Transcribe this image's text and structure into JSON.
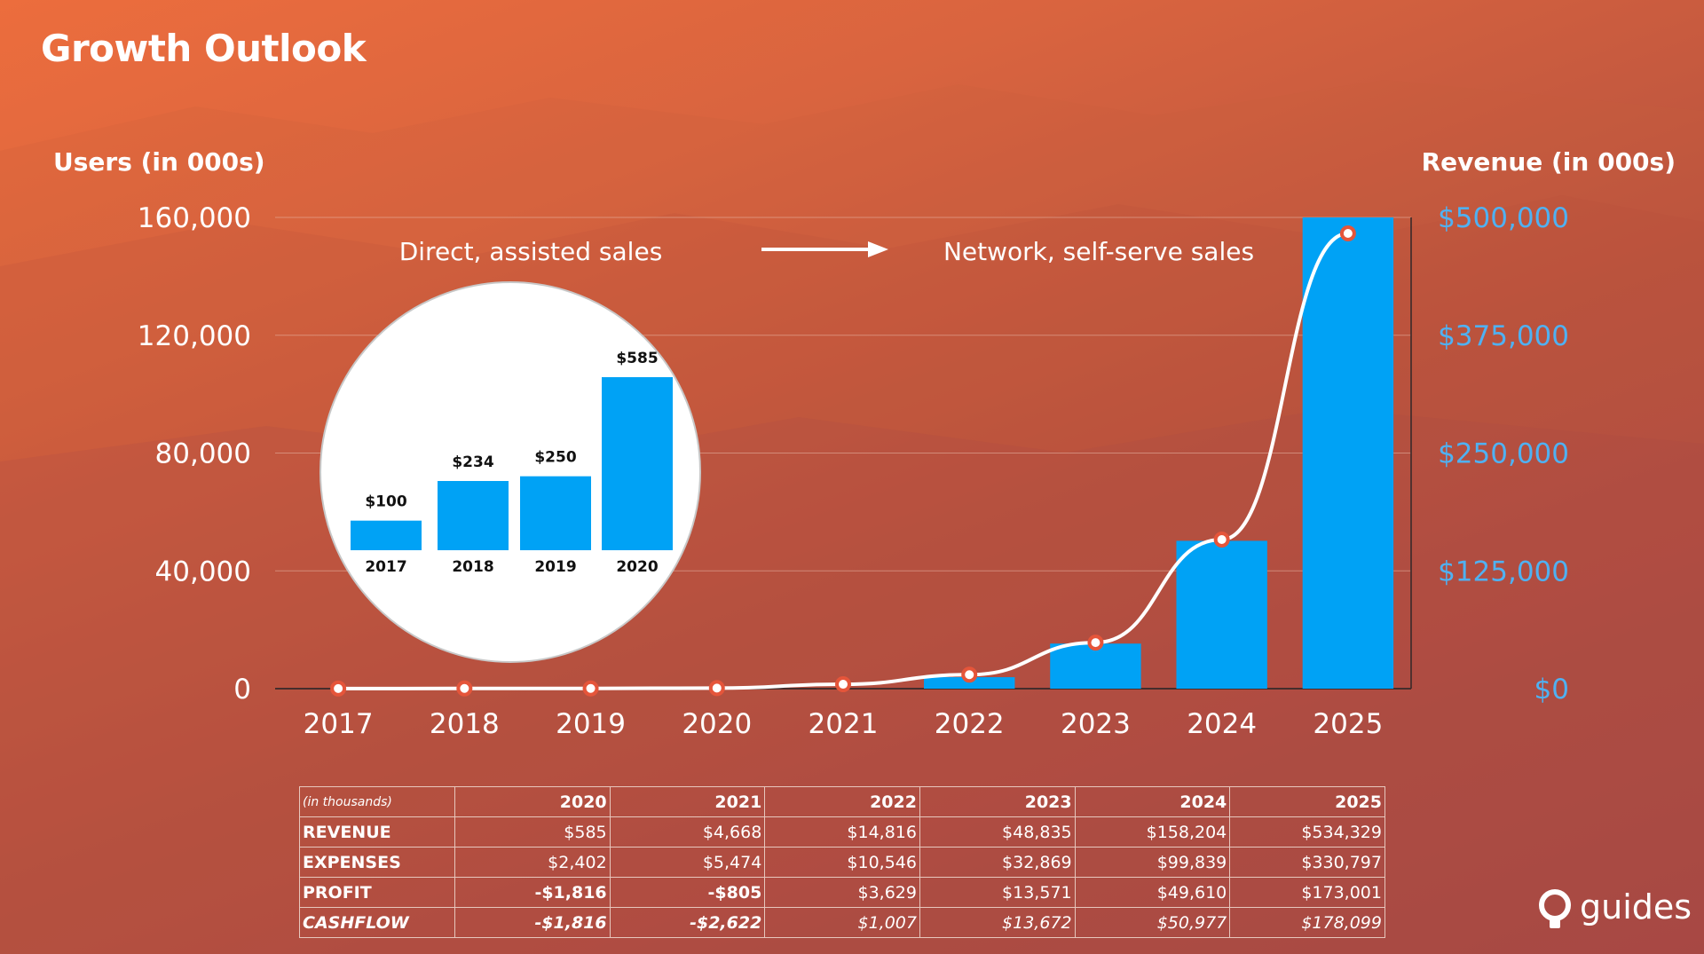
{
  "title": "Growth Outlook",
  "left_axis_title": "Users (in 000s)",
  "right_axis_title": "Revenue (in 000s)",
  "annotations": {
    "left": "Direct, assisted sales",
    "right": "Network, self-serve sales"
  },
  "logo_text": "guides",
  "colors": {
    "bars": "#00a2f5",
    "line": "#ffffff",
    "marker": "#e5553a",
    "right_ticks": "#4fb1f2"
  },
  "chart_data": [
    {
      "type": "bar",
      "subtype": "bar + line, dual axis",
      "categories": [
        "2017",
        "2018",
        "2019",
        "2020",
        "2021",
        "2022",
        "2023",
        "2024",
        "2025"
      ],
      "left_axis": {
        "label": "Users (in 000s)",
        "range": [
          0,
          160000
        ],
        "ticks": [
          "0",
          "40,000",
          "80,000",
          "120,000",
          "160,000"
        ]
      },
      "right_axis": {
        "label": "Revenue (in 000s)",
        "range": [
          0,
          500000
        ],
        "ticks": [
          "$0",
          "$125,000",
          "$250,000",
          "$375,000",
          "$500,000"
        ]
      },
      "series": [
        {
          "type": "bar",
          "axis": "left",
          "values": [
            0,
            0,
            0,
            0,
            0,
            3900,
            15300,
            50200,
            160000
          ]
        },
        {
          "type": "line",
          "axis": "right",
          "values": [
            100,
            234,
            250,
            585,
            4668,
            14816,
            48835,
            158204,
            534329
          ]
        }
      ],
      "grid": true
    },
    {
      "type": "bar",
      "categories": [
        "2017",
        "2018",
        "2019",
        "2020"
      ],
      "values": [
        100,
        234,
        250,
        585
      ],
      "value_labels": [
        "$100",
        "$234",
        "$250",
        "$585"
      ]
    }
  ],
  "table": {
    "unit_label": "(in thousands)",
    "columns": [
      "2020",
      "2021",
      "2022",
      "2023",
      "2024",
      "2025"
    ],
    "rows": [
      {
        "label": "REVENUE",
        "values": [
          "$585",
          "$4,668",
          "$14,816",
          "$48,835",
          "$158,204",
          "$534,329"
        ],
        "bold": [
          false,
          false,
          false,
          false,
          false,
          false
        ]
      },
      {
        "label": "EXPENSES",
        "values": [
          "$2,402",
          "$5,474",
          "$10,546",
          "$32,869",
          "$99,839",
          "$330,797"
        ],
        "bold": [
          false,
          false,
          false,
          false,
          false,
          false
        ]
      },
      {
        "label": "PROFIT",
        "values": [
          "-$1,816",
          "-$805",
          "$3,629",
          "$13,571",
          "$49,610",
          "$173,001"
        ],
        "bold": [
          true,
          true,
          false,
          false,
          false,
          false
        ]
      },
      {
        "label": "CASHFLOW",
        "values": [
          "-$1,816",
          "-$2,622",
          "$1,007",
          "$13,672",
          "$50,977",
          "$178,099"
        ],
        "bold": [
          true,
          true,
          false,
          false,
          false,
          false
        ]
      }
    ]
  }
}
